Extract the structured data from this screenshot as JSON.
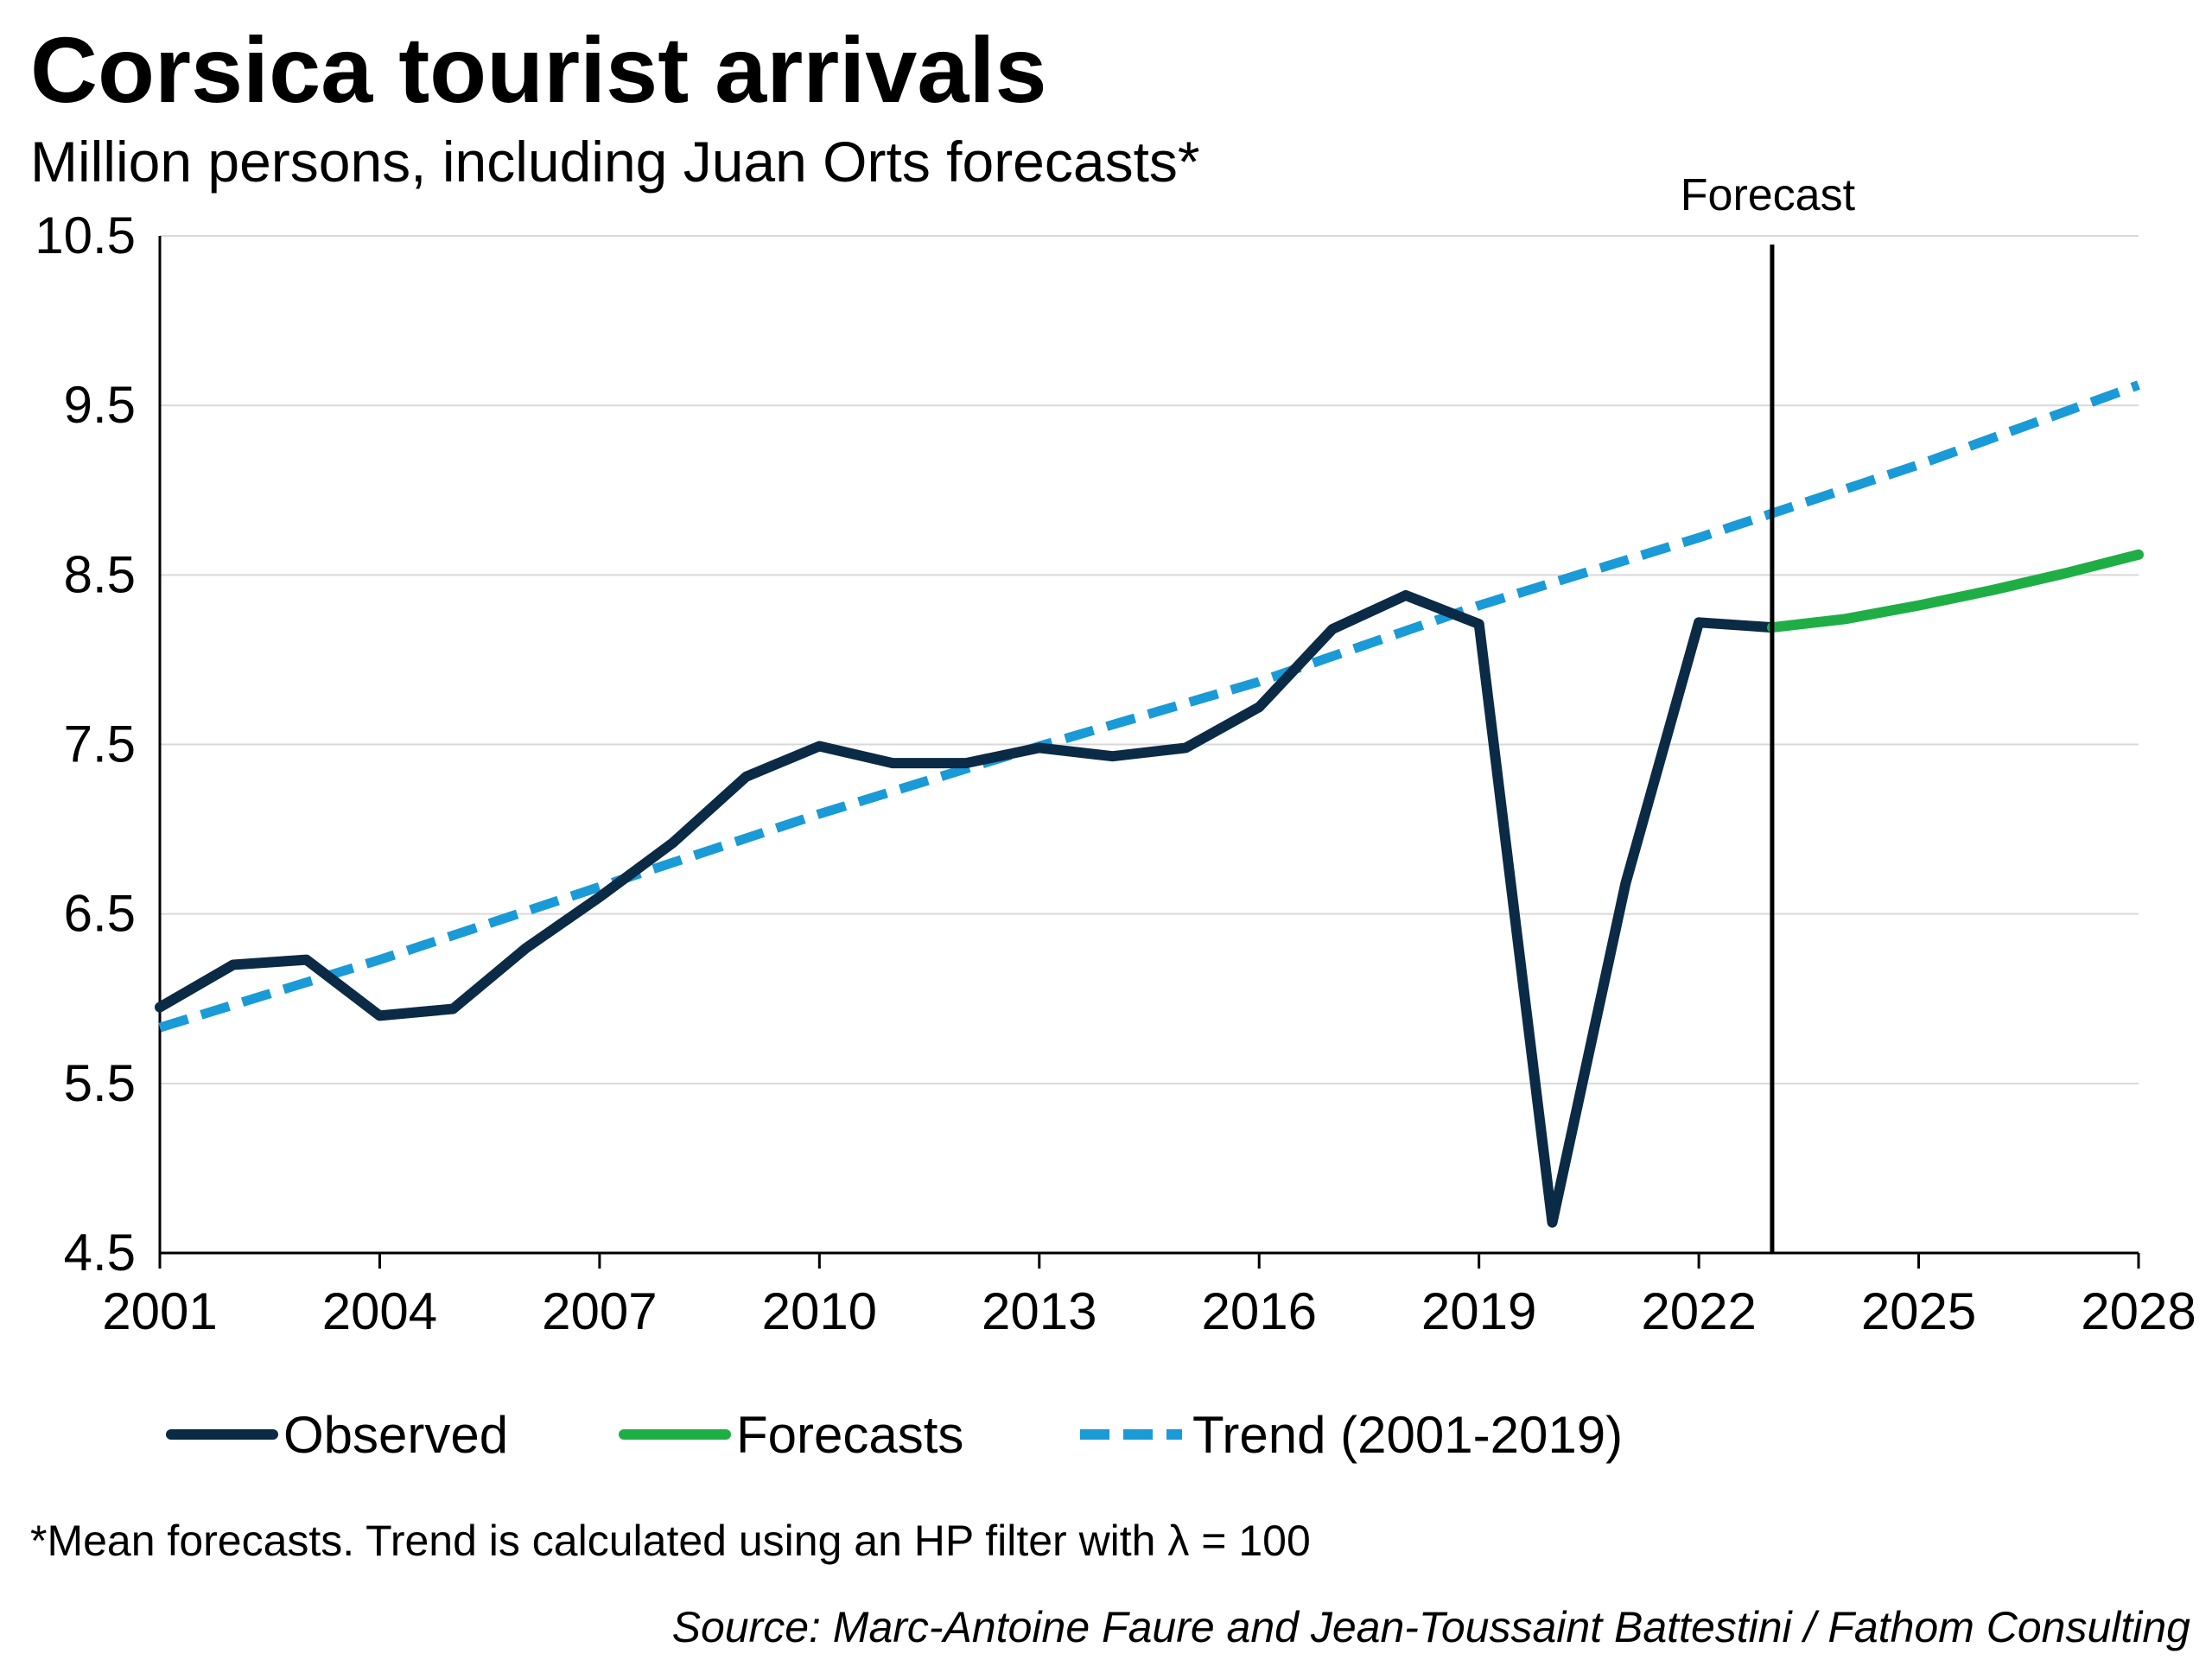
{
  "chart_data": {
    "type": "line",
    "title": "Corsica tourist arrivals",
    "subtitle": "Million persons, including Juan Orts forecasts*",
    "xlabel": "",
    "ylabel": "",
    "xlim": [
      2001,
      2028
    ],
    "ylim": [
      4.5,
      10.5
    ],
    "x_ticks": [
      "2001",
      "2004",
      "2007",
      "2010",
      "2013",
      "2016",
      "2019",
      "2022",
      "2025",
      "2028"
    ],
    "y_ticks": [
      "10.5",
      "9.5",
      "8.5",
      "7.5",
      "6.5",
      "5.5",
      "4.5"
    ],
    "grid": "horizontal",
    "legend_position": "bottom",
    "forecast_line": {
      "x": 2023,
      "label": "Forecast"
    },
    "series": [
      {
        "name": "Observed",
        "color": "#0b2a45",
        "style": "solid",
        "x": [
          2001,
          2002,
          2003,
          2004,
          2005,
          2006,
          2007,
          2008,
          2009,
          2010,
          2011,
          2012,
          2013,
          2014,
          2015,
          2016,
          2017,
          2018,
          2019,
          2020,
          2021,
          2022,
          2023
        ],
        "y": [
          5.95,
          6.2,
          6.23,
          5.9,
          5.94,
          6.3,
          6.6,
          6.92,
          7.31,
          7.49,
          7.39,
          7.39,
          7.48,
          7.43,
          7.48,
          7.72,
          8.18,
          8.38,
          8.21,
          4.68,
          6.68,
          8.22,
          8.19
        ]
      },
      {
        "name": "Forecasts",
        "color": "#1fae45",
        "style": "solid",
        "x": [
          2023,
          2024,
          2025,
          2026,
          2027,
          2028
        ],
        "y": [
          8.19,
          8.24,
          8.32,
          8.41,
          8.51,
          8.62
        ]
      },
      {
        "name": "Trend (2001-2019)",
        "color": "#1a9ad6",
        "style": "dashed",
        "x": [
          2001,
          2004,
          2007,
          2010,
          2013,
          2016,
          2019,
          2022,
          2025,
          2028
        ],
        "y": [
          5.83,
          6.23,
          6.66,
          7.09,
          7.49,
          7.87,
          8.32,
          8.72,
          9.15,
          9.62
        ]
      }
    ]
  },
  "footnote": "*Mean forecasts. Trend is calculated using an HP filter with λ = 100",
  "source": "Source: Marc-Antoine Faure and Jean-Toussaint Battestini / Fathom Consulting"
}
